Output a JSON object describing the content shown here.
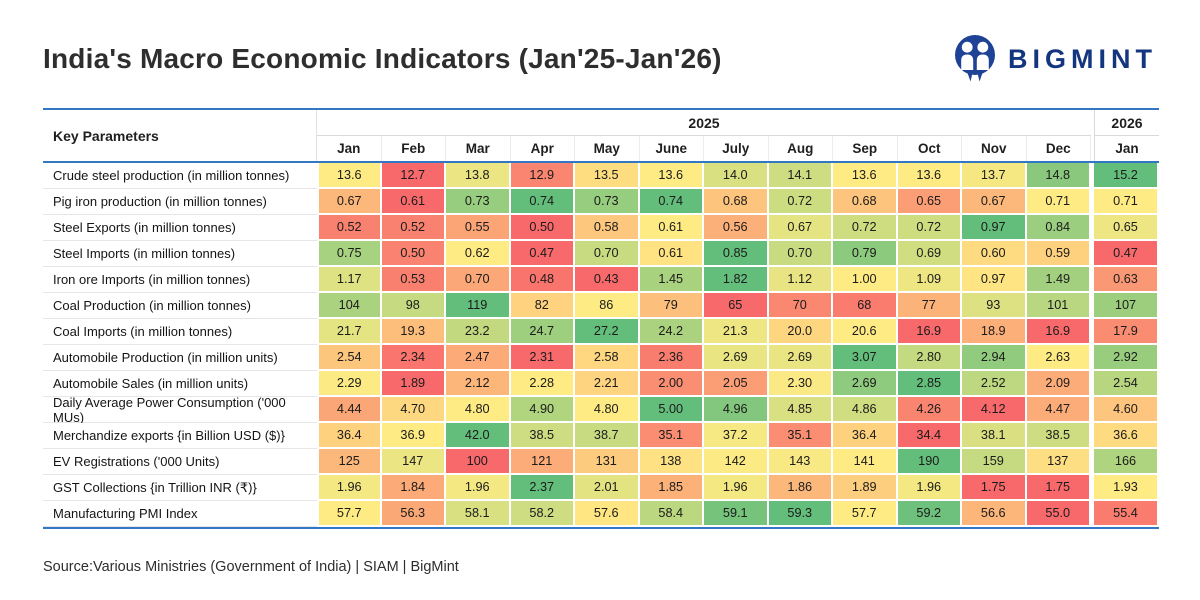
{
  "page": {
    "title": "India's Macro Economic Indicators (Jan'25-Jan'26)",
    "source": "Source:Various Ministries (Government of India) | SIAM | BigMint"
  },
  "brand": {
    "name": "BIGMINT",
    "color": "#14367e"
  },
  "chart_data": {
    "type": "heatmap",
    "title": "India's Macro Economic Indicators (Jan'25-Jan'26)",
    "corner_header": "Key Parameters",
    "year_groups": [
      {
        "label": "2025",
        "months": 12
      },
      {
        "label": "2026",
        "months": 1
      }
    ],
    "columns": [
      "Jan",
      "Feb",
      "Mar",
      "Apr",
      "May",
      "June",
      "July",
      "Aug",
      "Sep",
      "Oct",
      "Nov",
      "Dec",
      "Jan"
    ],
    "colormap": {
      "low": "#F8696B",
      "mid": "#FFEB84",
      "high": "#63BE7B",
      "midpoint": "median",
      "note": "per-row 3-color scale: row min = red, row median = yellow, row max = green"
    },
    "rows": [
      {
        "label": "Crude steel production (in million tonnes)",
        "decimals": 1,
        "values": [
          13.6,
          12.7,
          13.8,
          12.9,
          13.5,
          13.6,
          14.0,
          14.1,
          13.6,
          13.6,
          13.7,
          14.8,
          15.2
        ]
      },
      {
        "label": "Pig iron production (in million tonnes)",
        "decimals": 2,
        "values": [
          0.67,
          0.61,
          0.73,
          0.74,
          0.73,
          0.74,
          0.68,
          0.72,
          0.68,
          0.65,
          0.67,
          0.71,
          0.71
        ]
      },
      {
        "label": "Steel Exports (in million tonnes)",
        "decimals": 2,
        "values": [
          0.52,
          0.52,
          0.55,
          0.5,
          0.58,
          0.61,
          0.56,
          0.67,
          0.72,
          0.72,
          0.97,
          0.84,
          0.65
        ]
      },
      {
        "label": "Steel Imports (in million tonnes)",
        "decimals": 2,
        "values": [
          0.75,
          0.5,
          0.62,
          0.47,
          0.7,
          0.61,
          0.85,
          0.7,
          0.79,
          0.69,
          0.6,
          0.59,
          0.47
        ]
      },
      {
        "label": "Iron ore Imports (in million tonnes)",
        "decimals": 2,
        "values": [
          1.17,
          0.53,
          0.7,
          0.48,
          0.43,
          1.45,
          1.82,
          1.12,
          1.0,
          1.09,
          0.97,
          1.49,
          0.63
        ]
      },
      {
        "label": "Coal Production (in million tonnes)",
        "decimals": 0,
        "values": [
          104,
          98,
          119,
          82,
          86,
          79,
          65,
          70,
          68,
          77,
          93,
          101,
          107
        ]
      },
      {
        "label": "Coal Imports (in million tonnes)",
        "decimals": 1,
        "values": [
          21.7,
          19.3,
          23.2,
          24.7,
          27.2,
          24.2,
          21.3,
          20.0,
          20.6,
          16.9,
          18.9,
          16.9,
          17.9
        ]
      },
      {
        "label": "Automobile Production (in million units)",
        "decimals": 2,
        "values": [
          2.54,
          2.34,
          2.47,
          2.31,
          2.58,
          2.36,
          2.69,
          2.69,
          3.07,
          2.8,
          2.94,
          2.63,
          2.92
        ]
      },
      {
        "label": "Automobile Sales (in million units)",
        "decimals": 2,
        "values": [
          2.29,
          1.89,
          2.12,
          2.28,
          2.21,
          2.0,
          2.05,
          2.3,
          2.69,
          2.85,
          2.52,
          2.09,
          2.54
        ]
      },
      {
        "label": "Daily Average Power Consumption ('000 MUs)",
        "decimals": 2,
        "values": [
          4.44,
          4.7,
          4.8,
          4.9,
          4.8,
          5.0,
          4.96,
          4.85,
          4.86,
          4.26,
          4.12,
          4.47,
          4.6
        ]
      },
      {
        "label": "Merchandize exports {in Billion USD ($)}",
        "decimals": 1,
        "values": [
          36.4,
          36.9,
          42.0,
          38.5,
          38.7,
          35.1,
          37.2,
          35.1,
          36.4,
          34.4,
          38.1,
          38.5,
          36.6
        ]
      },
      {
        "label": "EV Registrations ('000 Units)",
        "decimals": 0,
        "values": [
          125,
          147,
          100,
          121,
          131,
          138,
          142,
          143,
          141,
          190,
          159,
          137,
          166
        ]
      },
      {
        "label": "GST Collections {in Trillion INR (₹)}",
        "decimals": 2,
        "values": [
          1.96,
          1.84,
          1.96,
          2.37,
          2.01,
          1.85,
          1.96,
          1.86,
          1.89,
          1.96,
          1.75,
          1.75,
          1.93
        ]
      },
      {
        "label": "Manufacturing PMI Index",
        "decimals": 1,
        "values": [
          57.7,
          56.3,
          58.1,
          58.2,
          57.6,
          58.4,
          59.1,
          59.3,
          57.7,
          59.2,
          56.6,
          55.0,
          55.4
        ]
      }
    ]
  }
}
